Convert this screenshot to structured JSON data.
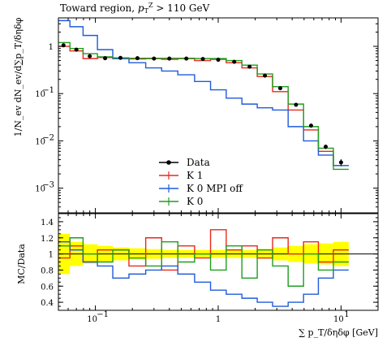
{
  "chart_data": {
    "type": "line",
    "title": "Toward region, p_T^Z > 110 GeV",
    "xlabel": "∑ p_T/δηδφ [GeV]",
    "ylabel": "1/N_ev dN_ev/d∑p_T/δηδφ",
    "ratio_ylabel": "MC/Data",
    "xscale": "log",
    "yscale": "log",
    "xlim": [
      0.05,
      20
    ],
    "ylim": [
      0.0003,
      4
    ],
    "ratio_ylim": [
      0.3,
      1.5
    ],
    "grid": false,
    "legend_position": "center",
    "x_tick_labels": [
      "10^{-1}",
      "1",
      "10^{1}"
    ],
    "y_tick_labels": [
      "10^{-3}",
      "10^{-2}",
      "10^{-1}",
      "1"
    ],
    "ratio_tick_labels": [
      "0.4",
      "0.6",
      "0.8",
      "1",
      "1.2",
      "1.4"
    ],
    "x": [
      0.055,
      0.07,
      0.09,
      0.12,
      0.16,
      0.22,
      0.3,
      0.4,
      0.55,
      0.75,
      1.0,
      1.35,
      1.8,
      2.4,
      3.2,
      4.3,
      5.7,
      7.5,
      10.0
    ],
    "series": [
      {
        "name": "Data",
        "color": "#000000",
        "style": "points",
        "values": [
          1.05,
          0.85,
          0.62,
          0.56,
          0.57,
          0.56,
          0.55,
          0.55,
          0.55,
          0.54,
          0.52,
          0.47,
          0.37,
          0.24,
          0.13,
          0.058,
          0.021,
          0.0075,
          0.0035
        ],
        "errors": [
          0.08,
          0.06,
          0.05,
          0.03,
          0.02,
          0.02,
          0.02,
          0.02,
          0.02,
          0.02,
          0.02,
          0.02,
          0.02,
          0.015,
          0.01,
          0.005,
          0.002,
          0.0008,
          0.0006
        ]
      },
      {
        "name": "K 1",
        "color": "#e8291e",
        "style": "hist",
        "values": [
          1.0,
          0.8,
          0.55,
          0.58,
          0.55,
          0.54,
          0.56,
          0.53,
          0.56,
          0.5,
          0.53,
          0.45,
          0.35,
          0.23,
          0.11,
          0.045,
          0.017,
          0.006,
          0.003
        ],
        "ratio": [
          0.95,
          1.1,
          0.9,
          1.05,
          1.05,
          0.85,
          1.2,
          0.8,
          1.1,
          0.95,
          1.3,
          1.05,
          1.1,
          0.95,
          1.2,
          1.0,
          1.15,
          0.9,
          1.05
        ]
      },
      {
        "name": "K 0 MPI off",
        "color": "#1f5bdc",
        "style": "hist",
        "values": [
          3.5,
          2.6,
          1.7,
          0.85,
          0.55,
          0.45,
          0.35,
          0.3,
          0.25,
          0.18,
          0.12,
          0.08,
          0.06,
          0.05,
          0.045,
          0.02,
          0.01,
          0.005,
          0.003
        ],
        "ratio": [
          1.15,
          1.05,
          0.9,
          0.85,
          0.7,
          0.75,
          0.8,
          0.85,
          0.75,
          0.65,
          0.55,
          0.5,
          0.45,
          0.4,
          0.35,
          0.4,
          0.5,
          0.7,
          0.8
        ]
      },
      {
        "name": "K 0",
        "color": "#1f9e1f",
        "style": "hist",
        "values": [
          1.2,
          0.9,
          0.7,
          0.6,
          0.57,
          0.56,
          0.55,
          0.56,
          0.55,
          0.55,
          0.55,
          0.5,
          0.4,
          0.26,
          0.14,
          0.06,
          0.02,
          0.007,
          0.0025
        ],
        "ratio": [
          1.1,
          1.2,
          1.0,
          0.9,
          1.05,
          0.95,
          0.85,
          1.15,
          0.9,
          1.0,
          0.8,
          1.1,
          0.7,
          1.05,
          0.85,
          0.6,
          1.0,
          0.8,
          0.9
        ]
      }
    ],
    "data_uncertainty_band": {
      "color": "#ffff00",
      "low": [
        0.75,
        0.85,
        0.88,
        0.9,
        0.92,
        0.93,
        0.94,
        0.95,
        0.95,
        0.95,
        0.95,
        0.95,
        0.95,
        0.94,
        0.92,
        0.9,
        0.88,
        0.87,
        0.85
      ],
      "high": [
        1.25,
        1.15,
        1.12,
        1.1,
        1.08,
        1.07,
        1.06,
        1.05,
        1.05,
        1.05,
        1.05,
        1.05,
        1.05,
        1.06,
        1.08,
        1.1,
        1.12,
        1.13,
        1.15
      ]
    }
  }
}
